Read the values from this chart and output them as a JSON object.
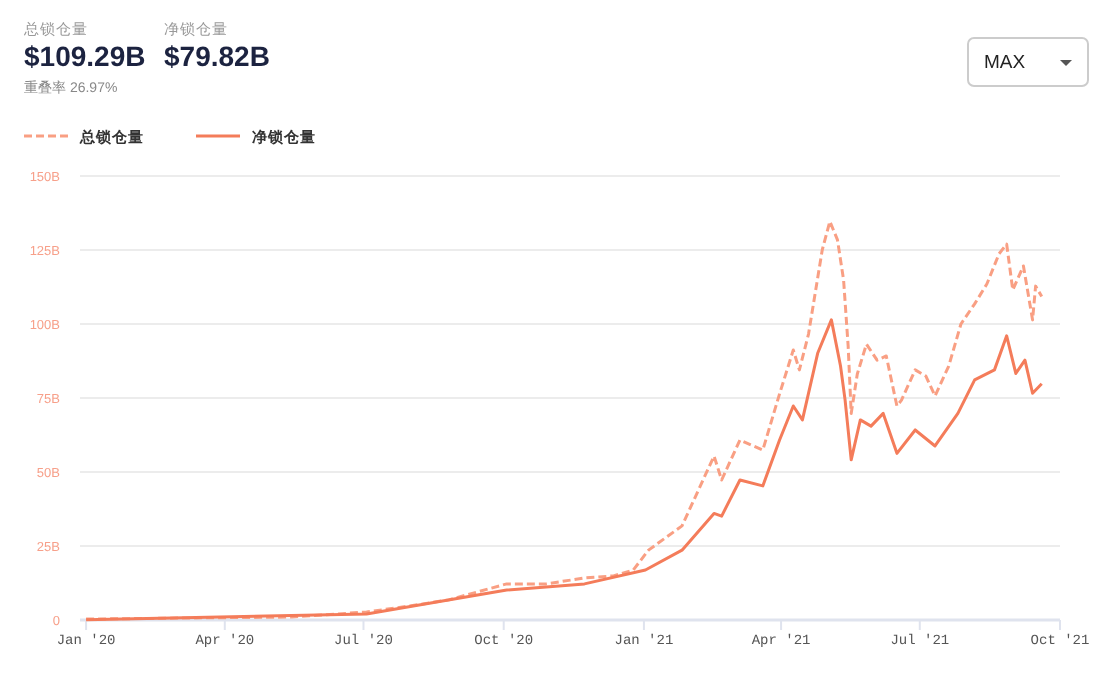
{
  "chart_data": {
    "type": "line",
    "annotations": [
      "总锁仓量",
      "$109.29B",
      "净锁仓量",
      "$79.82B",
      "重叠率 26.97%",
      "MAX"
    ],
    "xlim": [
      "2019-12-28",
      "2021-10-01"
    ],
    "xticks": [
      {
        "value": "2020-01-01",
        "label": "Jan '20"
      },
      {
        "value": "2020-04-01",
        "label": "Apr '20"
      },
      {
        "value": "2020-07-01",
        "label": "Jul '20"
      },
      {
        "value": "2020-10-01",
        "label": "Oct '20"
      },
      {
        "value": "2021-01-01",
        "label": "Jan '21"
      },
      {
        "value": "2021-04-01",
        "label": "Apr '21"
      },
      {
        "value": "2021-07-01",
        "label": "Jul '21"
      },
      {
        "value": "2021-10-01",
        "label": "Oct '21"
      }
    ],
    "ylim": [
      0,
      150
    ],
    "yticks": [
      0,
      {
        "value": 25,
        "label": "25B"
      },
      {
        "value": 50,
        "label": "50B"
      },
      {
        "value": 75,
        "label": "75B"
      },
      {
        "value": 100,
        "label": "100B"
      },
      {
        "value": 125,
        "label": "125B"
      },
      {
        "value": 150,
        "label": "150B"
      }
    ],
    "grid": "y",
    "legend": "top left",
    "marker": "none",
    "series": [
      {
        "name": "总锁仓量",
        "color": "#f99f83",
        "line_style": "dashed",
        "x": [
          "2020-01-01",
          "2020-03-13",
          "2020-05-15",
          "2020-07-03",
          "2020-07-31",
          "2020-08-26",
          "2020-09-14",
          "2020-10-03",
          "2020-10-29",
          "2020-11-23",
          "2020-12-12",
          "2020-12-25",
          "2021-01-04",
          "2021-01-26",
          "2021-02-16",
          "2021-02-21",
          "2021-03-05",
          "2021-03-20",
          "2021-03-31",
          "2021-04-09",
          "2021-04-13",
          "2021-04-19",
          "2021-04-28",
          "2021-05-03",
          "2021-05-08",
          "2021-05-12",
          "2021-05-15",
          "2021-05-17",
          "2021-05-21",
          "2021-05-27",
          "2021-06-03",
          "2021-06-09",
          "2021-06-16",
          "2021-06-19",
          "2021-06-28",
          "2021-07-05",
          "2021-07-11",
          "2021-07-20",
          "2021-07-28",
          "2021-08-06",
          "2021-08-14",
          "2021-08-22",
          "2021-08-27",
          "2021-08-31",
          "2021-09-07",
          "2021-09-13",
          "2021-09-15",
          "2021-09-19"
        ],
        "values": [
          0.3,
          0.7,
          1.0,
          2.7,
          4.7,
          6.8,
          9.5,
          12.2,
          12.2,
          14.2,
          14.9,
          16.9,
          23.6,
          31.8,
          55.4,
          47.3,
          60.8,
          57.4,
          76.4,
          91.2,
          84.5,
          96.6,
          125.0,
          134.7,
          128.4,
          114.9,
          92.6,
          69.8,
          83.1,
          93.2,
          87.8,
          89.2,
          72.3,
          74.3,
          84.5,
          82.4,
          75.7,
          85.8,
          100.0,
          106.8,
          113.5,
          123.7,
          127.0,
          111.5,
          119.6,
          101.4,
          112.8,
          109.3
        ]
      },
      {
        "name": "净锁仓量",
        "color": "#f47c5a",
        "line_style": "solid",
        "x": [
          "2020-01-01",
          "2020-07-03",
          "2020-10-03",
          "2020-11-23",
          "2021-01-02",
          "2021-01-26",
          "2021-02-16",
          "2021-02-21",
          "2021-03-05",
          "2021-03-20",
          "2021-03-31",
          "2021-04-09",
          "2021-04-15",
          "2021-04-25",
          "2021-05-04",
          "2021-05-10",
          "2021-05-13",
          "2021-05-17",
          "2021-05-23",
          "2021-05-30",
          "2021-06-07",
          "2021-06-16",
          "2021-06-28",
          "2021-07-11",
          "2021-07-26",
          "2021-08-06",
          "2021-08-19",
          "2021-08-27",
          "2021-09-02",
          "2021-09-08",
          "2021-09-13",
          "2021-09-19"
        ],
        "values": [
          0.1,
          2.0,
          10.1,
          12.2,
          16.9,
          23.6,
          36.0,
          35.1,
          47.3,
          45.3,
          60.8,
          72.3,
          67.6,
          90.1,
          101.4,
          85.8,
          74.3,
          54.1,
          67.6,
          65.5,
          69.8,
          56.3,
          64.2,
          58.8,
          69.8,
          81.1,
          84.5,
          96.0,
          83.3,
          87.8,
          76.6,
          79.8
        ]
      }
    ]
  }
}
